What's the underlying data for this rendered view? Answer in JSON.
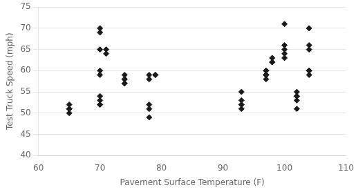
{
  "chart_data": {
    "type": "scatter",
    "x": [
      65,
      65,
      65,
      65,
      70,
      70,
      70,
      70,
      70,
      70,
      70,
      70,
      70,
      71,
      71,
      74,
      74,
      74,
      74,
      74,
      78,
      78,
      78,
      78,
      78,
      79,
      79,
      93,
      93,
      93,
      93,
      93,
      97,
      97,
      97,
      97,
      97,
      97,
      98,
      98,
      98,
      100,
      100,
      100,
      100,
      100,
      102,
      102,
      102,
      102,
      102,
      104,
      104,
      104,
      104,
      104,
      104
    ],
    "values": [
      52,
      51,
      51,
      50,
      60,
      59,
      54,
      53,
      52,
      52,
      70,
      69,
      65,
      65,
      64,
      59,
      58,
      58,
      57,
      57,
      59,
      58,
      52,
      51,
      49,
      59,
      59,
      55,
      53,
      52,
      52,
      51,
      60,
      60,
      59,
      59,
      59,
      58,
      63,
      62,
      62,
      71,
      66,
      65,
      64,
      63,
      55,
      54,
      54,
      53,
      51,
      70,
      66,
      65,
      60,
      60,
      59
    ],
    "xlim": [
      60,
      110
    ],
    "ylim": [
      40,
      75
    ],
    "xticks": [
      60,
      70,
      80,
      90,
      100,
      110
    ],
    "yticks": [
      40,
      45,
      50,
      55,
      60,
      65,
      70,
      75
    ],
    "xlabel": "Pavement Surface Temperature (F)",
    "ylabel": "Test Truck Speed (mph)",
    "color": "#1a1a1a",
    "marker": "diamond",
    "grid": "y"
  }
}
